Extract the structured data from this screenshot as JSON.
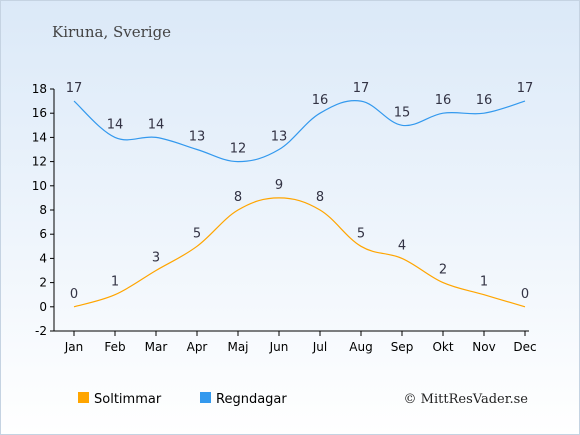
{
  "location": "Kiruna, Sverige",
  "credit": "© MittResVader.se",
  "colors": {
    "bg_top": "#dbe9f8",
    "bg_bottom": "#ffffff",
    "sun": "#ffa500",
    "rain": "#3399ee",
    "text": "#333344"
  },
  "chart_data": {
    "type": "line",
    "title": "Kiruna, Sverige",
    "categories": [
      "Jan",
      "Feb",
      "Mar",
      "Apr",
      "Maj",
      "Jun",
      "Jul",
      "Aug",
      "Sep",
      "Okt",
      "Nov",
      "Dec"
    ],
    "ylim": [
      -2,
      18
    ],
    "yticks": [
      -2,
      0,
      2,
      4,
      6,
      8,
      10,
      12,
      14,
      16,
      18
    ],
    "grid": false,
    "legend": "bottom-left",
    "series": [
      {
        "name": "Soltimmar",
        "color": "#ffa500",
        "values": [
          0,
          1,
          3,
          5,
          8,
          9,
          8,
          5,
          4,
          2,
          1,
          0
        ]
      },
      {
        "name": "Regndagar",
        "color": "#3399ee",
        "values": [
          17,
          14,
          14,
          13,
          12,
          13,
          16,
          17,
          15,
          16,
          16,
          17
        ]
      }
    ]
  }
}
